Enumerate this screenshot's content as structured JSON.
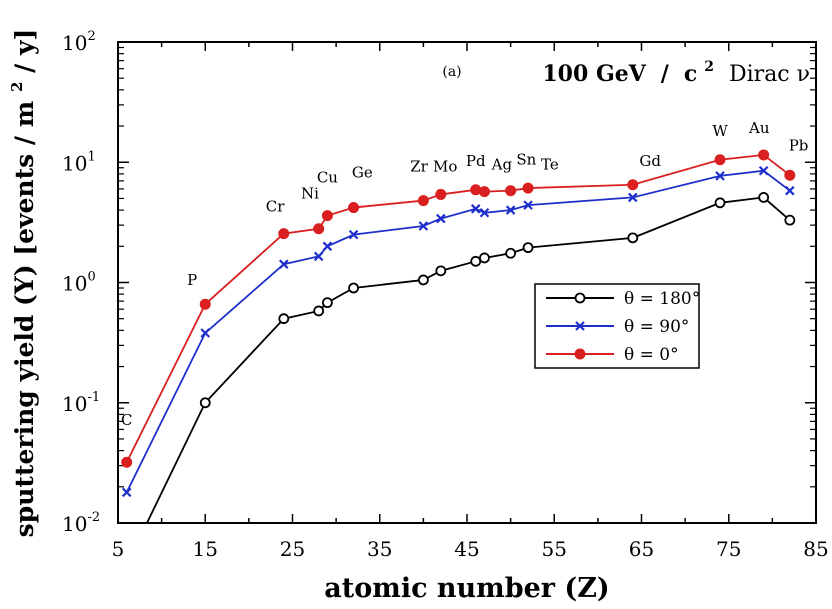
{
  "chart_data": {
    "type": "line",
    "panel_label": "(a)",
    "title_parts": {
      "mass": "100 GeV",
      "slash": "/",
      "c": "c",
      "exp": "2",
      "model": "Dirac ν"
    },
    "xlabel": "atomic number (Z)",
    "ylabel_parts": {
      "pre": "sputtering yield (Y) [events / m",
      "exp": "2",
      "post": " / y]"
    },
    "xlim": [
      5,
      85
    ],
    "ylim": [
      0.01,
      100
    ],
    "y_scale": "log",
    "x_ticks": [
      5,
      15,
      25,
      35,
      45,
      55,
      65,
      75,
      85
    ],
    "y_ticks": [
      {
        "value": 0.01,
        "base": "10",
        "exp": "-2"
      },
      {
        "value": 0.1,
        "base": "10",
        "exp": "-1"
      },
      {
        "value": 1,
        "base": "10",
        "exp": "0"
      },
      {
        "value": 10,
        "base": "10",
        "exp": "1"
      },
      {
        "value": 100,
        "base": "10",
        "exp": "2"
      }
    ],
    "legend_position": "center-right",
    "series": [
      {
        "name": "θ = 180°",
        "color": "#000000",
        "marker": "open-circle",
        "x": [
          6,
          15,
          24,
          28,
          29,
          32,
          40,
          42,
          46,
          47,
          50,
          52,
          64,
          74,
          79,
          82
        ],
        "y": [
          0.0045,
          0.1,
          0.5,
          0.58,
          0.68,
          0.9,
          1.05,
          1.25,
          1.5,
          1.6,
          1.75,
          1.95,
          2.35,
          4.6,
          5.1,
          3.3
        ]
      },
      {
        "name": "θ = 90°",
        "color": "#1f2fcc",
        "marker": "x",
        "x": [
          6,
          15,
          24,
          28,
          29,
          32,
          40,
          42,
          46,
          47,
          50,
          52,
          64,
          74,
          79,
          82
        ],
        "y": [
          0.018,
          0.38,
          1.42,
          1.65,
          2.0,
          2.5,
          2.95,
          3.4,
          4.1,
          3.8,
          4.0,
          4.4,
          5.1,
          7.7,
          8.5,
          5.8
        ]
      },
      {
        "name": "θ = 0°",
        "color": "#d91f1f",
        "marker": "filled-circle",
        "x": [
          6,
          15,
          24,
          28,
          29,
          32,
          40,
          42,
          46,
          47,
          50,
          52,
          64,
          74,
          79,
          82
        ],
        "y": [
          0.032,
          0.66,
          2.55,
          2.8,
          3.6,
          4.2,
          4.8,
          5.4,
          5.9,
          5.7,
          5.8,
          6.1,
          6.5,
          10.5,
          11.5,
          7.8
        ]
      }
    ],
    "element_labels": [
      {
        "text": "C",
        "x": 6,
        "y": 0.065
      },
      {
        "text": "P",
        "x": 13.5,
        "y": 0.95
      },
      {
        "text": "Cr",
        "x": 23,
        "y": 3.9
      },
      {
        "text": "Ni",
        "x": 27,
        "y": 5.0
      },
      {
        "text": "Cu",
        "x": 29,
        "y": 6.8
      },
      {
        "text": "Ge",
        "x": 33,
        "y": 7.5
      },
      {
        "text": "Zr",
        "x": 39.5,
        "y": 8.4
      },
      {
        "text": "Mo",
        "x": 42.5,
        "y": 8.4
      },
      {
        "text": "Pd",
        "x": 46,
        "y": 9.3
      },
      {
        "text": "Ag",
        "x": 49,
        "y": 8.7
      },
      {
        "text": "Sn",
        "x": 51.8,
        "y": 9.6
      },
      {
        "text": "Te",
        "x": 54.5,
        "y": 8.7
      },
      {
        "text": "Gd",
        "x": 66,
        "y": 9.3
      },
      {
        "text": "W",
        "x": 74,
        "y": 16.5
      },
      {
        "text": "Au",
        "x": 78.5,
        "y": 17.5
      },
      {
        "text": "Pb",
        "x": 83,
        "y": 12.5
      }
    ]
  }
}
